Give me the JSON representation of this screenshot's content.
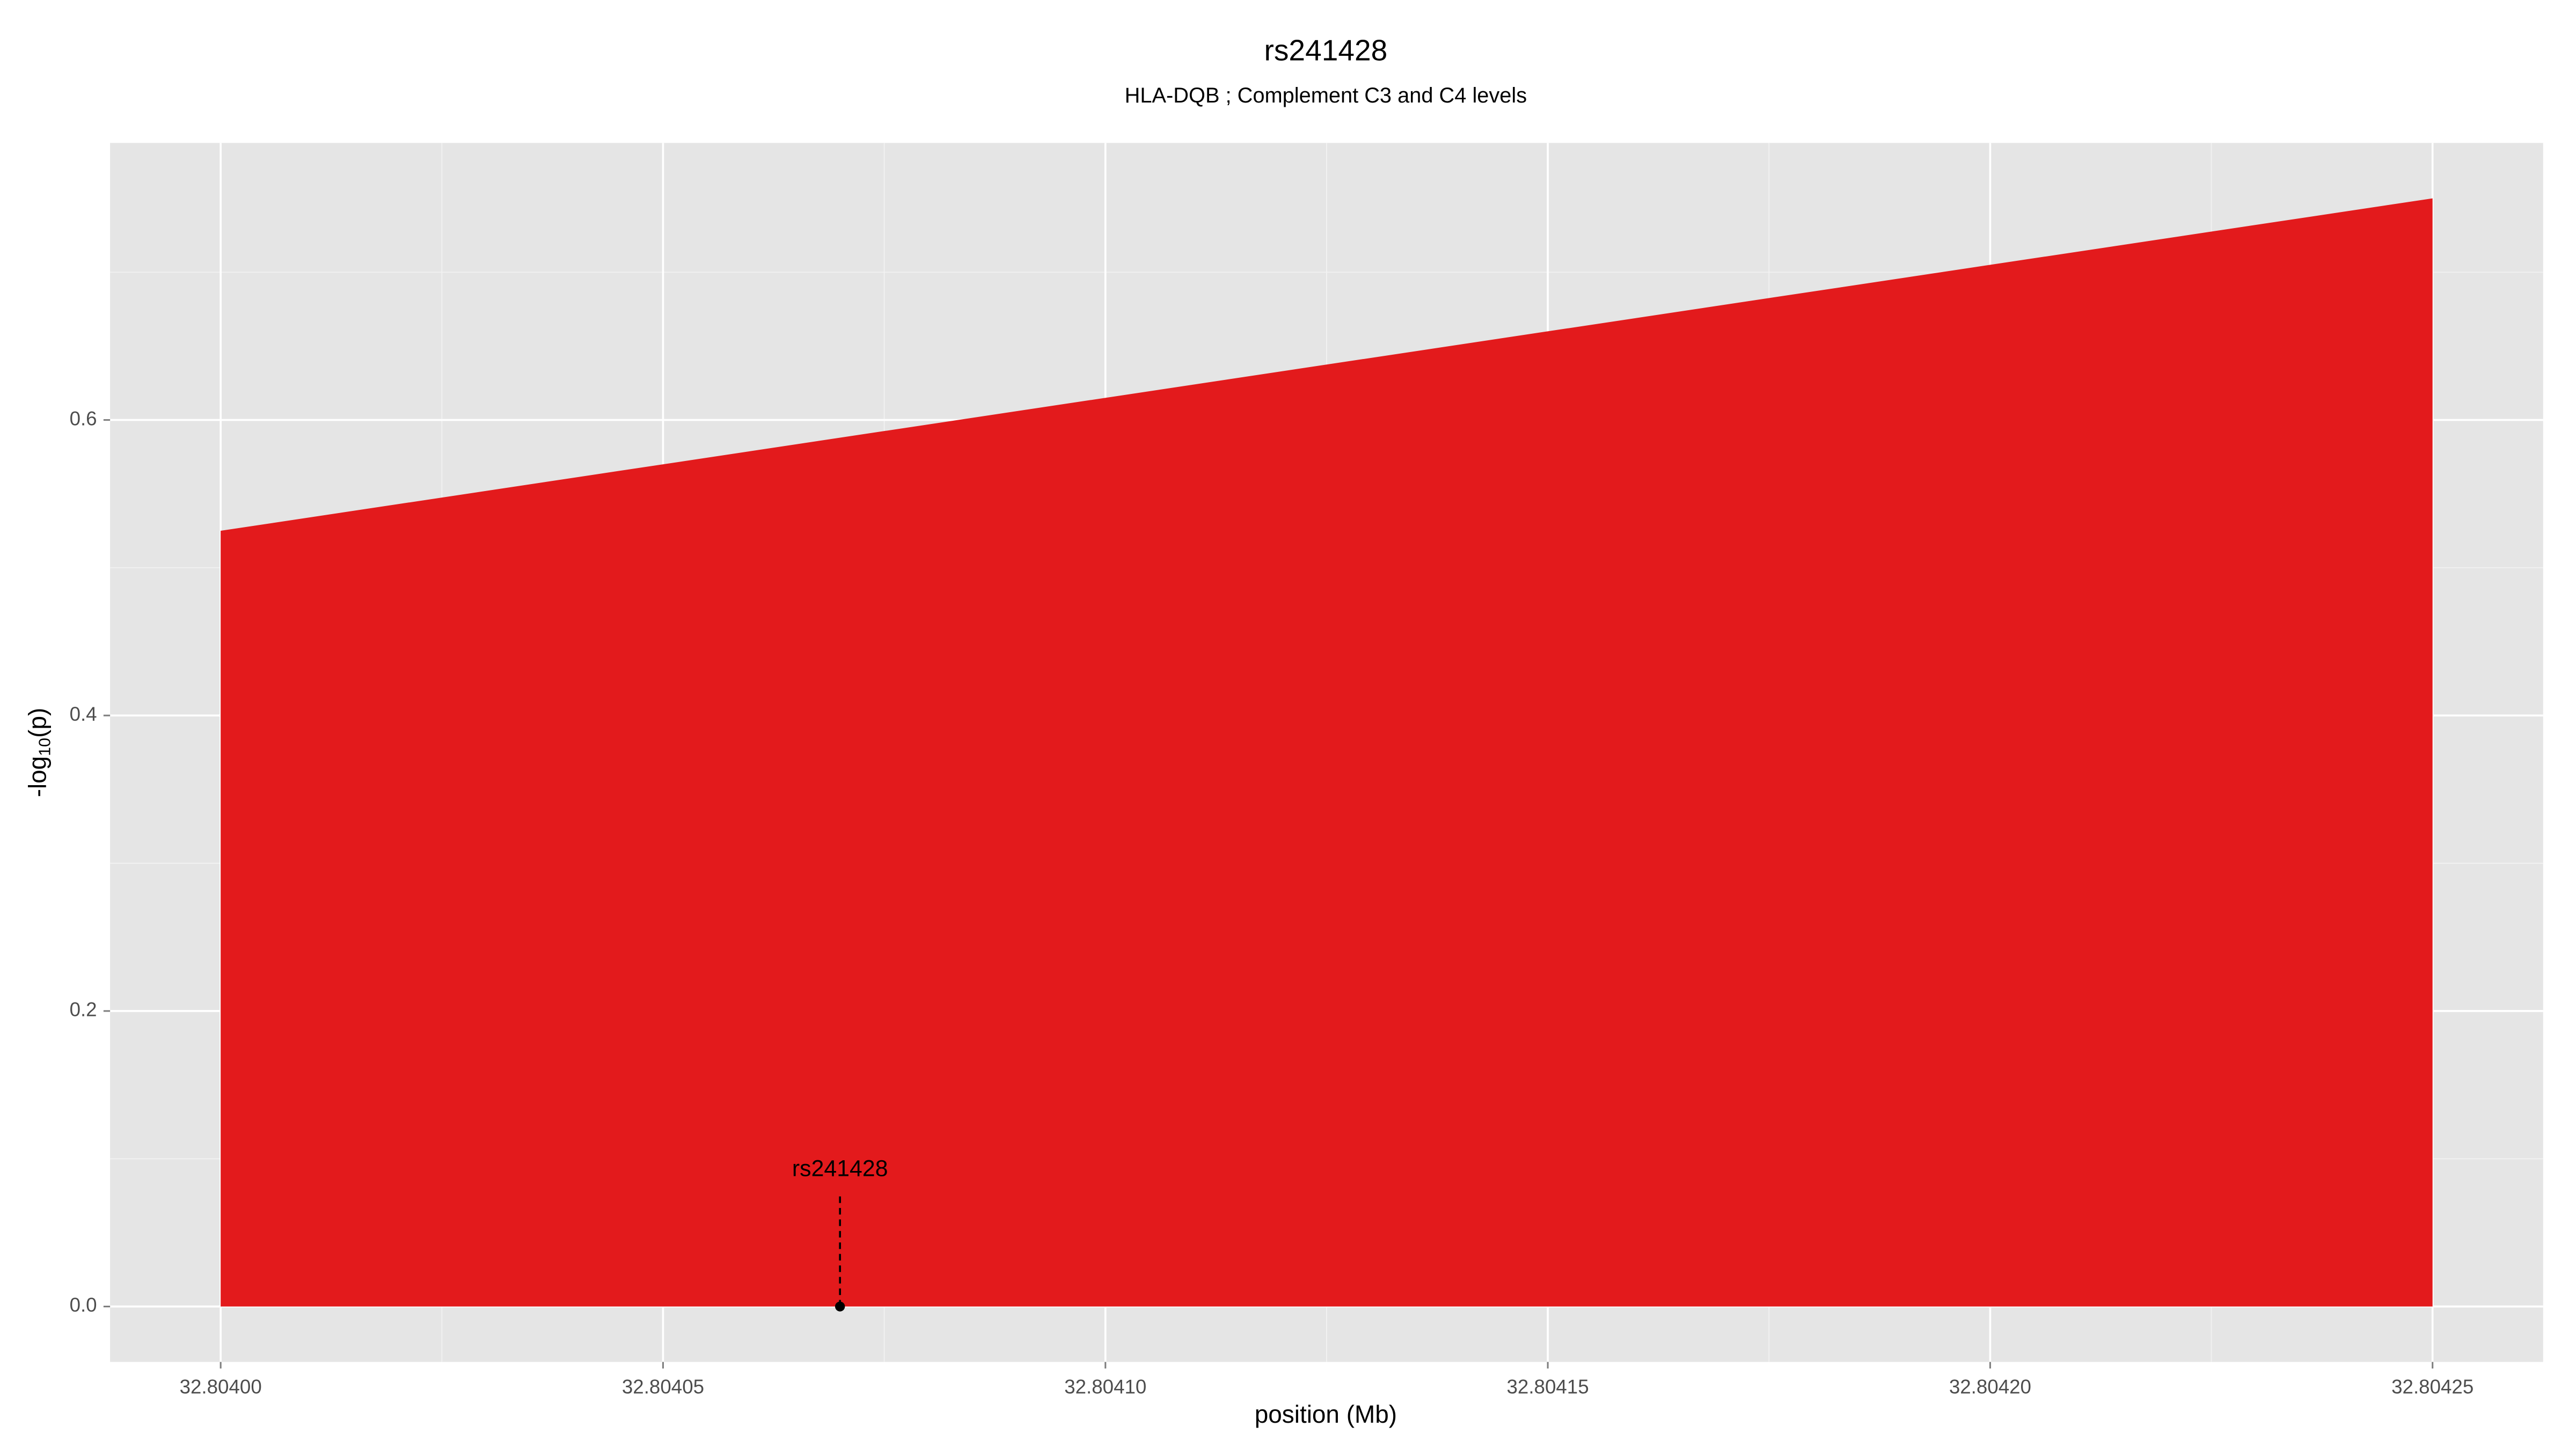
{
  "chart_data": {
    "type": "area",
    "title": "rs241428",
    "subtitle": "HLA-DQB ; Complement C3 and C4 levels",
    "xlabel": "position (Mb)",
    "ylabel": [
      "-log",
      "10",
      "(p)"
    ],
    "x": [
      32.804,
      32.80425
    ],
    "values": [
      0.525,
      0.75
    ],
    "color": "#e31a1c",
    "xlim": [
      32.8039875,
      32.8042625
    ],
    "ylim": [
      -0.0375,
      0.7875
    ],
    "xticks": [
      {
        "value": 32.804,
        "label": "32.80400"
      },
      {
        "value": 32.80405,
        "label": "32.80405"
      },
      {
        "value": 32.8041,
        "label": "32.80410"
      },
      {
        "value": 32.80415,
        "label": "32.80415"
      },
      {
        "value": 32.8042,
        "label": "32.80420"
      },
      {
        "value": 32.80425,
        "label": "32.80425"
      }
    ],
    "yticks": [
      {
        "value": 0,
        "label": "0.0"
      },
      0.2,
      0.4,
      0.6
    ],
    "grid": true,
    "minor_grid": true,
    "annotation": {
      "label": "rs241428",
      "x": 32.80407,
      "y": 0
    }
  }
}
